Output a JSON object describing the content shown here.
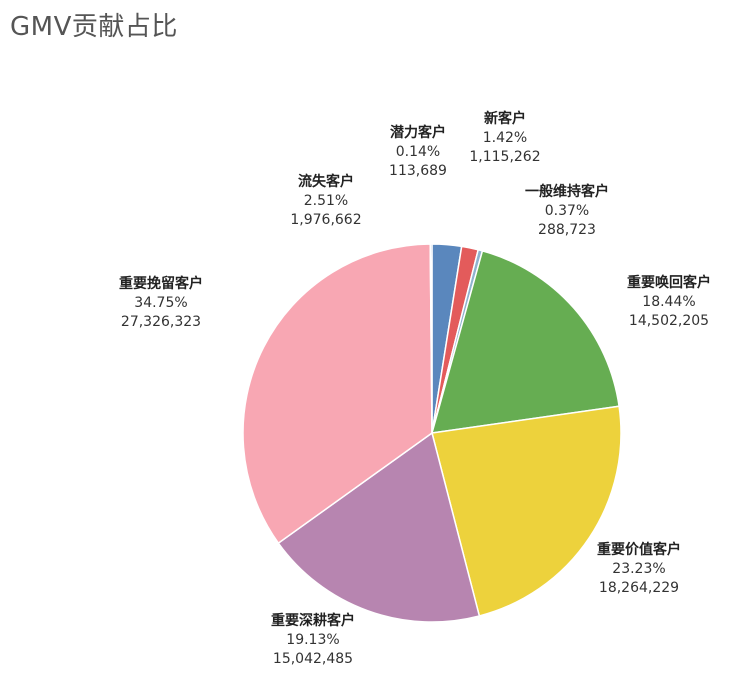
{
  "chart_data": {
    "type": "pie",
    "title": "GMV贡献占比",
    "slices": [
      {
        "name": "潜力客户",
        "percent": "0.14%",
        "value": "113,689",
        "share": 0.0014,
        "color": "#5a87bd"
      },
      {
        "name": "新客户",
        "percent": "1.42%",
        "value": "1,115,262",
        "share": 0.0142,
        "color": "#e35b5b"
      },
      {
        "name": "一般维持客户",
        "percent": "0.37%",
        "value": "288,723",
        "share": 0.0037,
        "color": "#8fb3cf"
      },
      {
        "name": "重要唤回客户",
        "percent": "18.44%",
        "value": "14,502,205",
        "share": 0.1844,
        "color": "#66ad52"
      },
      {
        "name": "重要价值客户",
        "percent": "23.23%",
        "value": "18,264,229",
        "share": 0.2323,
        "color": "#edd23c"
      },
      {
        "name": "重要深耕客户",
        "percent": "19.13%",
        "value": "15,042,485",
        "share": 0.1913,
        "color": "#b785b0"
      },
      {
        "name": "重要挽留客户",
        "percent": "34.75%",
        "value": "27,326,323",
        "share": 0.3475,
        "color": "#f8a7b3"
      },
      {
        "name": "流失客户",
        "percent": "2.51%",
        "value": "1,976,662",
        "share": 0.0251,
        "color": "#5a87bd"
      }
    ]
  }
}
